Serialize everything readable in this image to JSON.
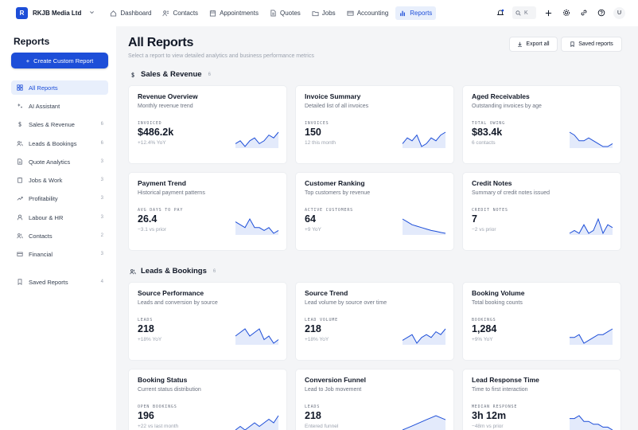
{
  "colors": {
    "accent": "#1d4ed8",
    "accent_bg": "#e8effc",
    "page_bg": "#f4f5f7"
  },
  "workspace": {
    "initial": "R",
    "name": "RKJB Media Ltd"
  },
  "nav": [
    {
      "label": "Dashboard",
      "icon": "home-icon"
    },
    {
      "label": "Contacts",
      "icon": "contacts-icon"
    },
    {
      "label": "Appointments",
      "icon": "calendar-icon"
    },
    {
      "label": "Quotes",
      "icon": "document-icon"
    },
    {
      "label": "Jobs",
      "icon": "folder-icon"
    },
    {
      "label": "Accounting",
      "icon": "credit-card-icon"
    },
    {
      "label": "Reports",
      "icon": "bar-chart-icon",
      "active": true
    }
  ],
  "search": {
    "shortcut": "K"
  },
  "user": {
    "initial": "U"
  },
  "sidebar": {
    "title": "Reports",
    "create_label": "Create Custom Report",
    "items": [
      {
        "label": "All Reports",
        "icon": "grid-icon",
        "active": true
      },
      {
        "label": "AI Assistant",
        "icon": "sparkle-icon"
      },
      {
        "label": "Sales & Revenue",
        "icon": "dollar-icon",
        "count": "6"
      },
      {
        "label": "Leads & Bookings",
        "icon": "users-icon",
        "count": "6"
      },
      {
        "label": "Quote Analytics",
        "icon": "document-icon",
        "count": "3"
      },
      {
        "label": "Jobs & Work",
        "icon": "clipboard-icon",
        "count": "3"
      },
      {
        "label": "Profitability",
        "icon": "trend-up-icon",
        "count": "3"
      },
      {
        "label": "Labour & HR",
        "icon": "user-icon",
        "count": "3"
      },
      {
        "label": "Contacts",
        "icon": "users-icon",
        "count": "2"
      },
      {
        "label": "Financial",
        "icon": "credit-card-icon",
        "count": "3"
      },
      {
        "label": "Saved Reports",
        "icon": "bookmark-icon",
        "count": "4"
      }
    ]
  },
  "main": {
    "title": "All Reports",
    "subtitle": "Select a report to view detailed analytics and business performance metrics",
    "export_label": "Export all",
    "saved_label": "Saved reports"
  },
  "sections": [
    {
      "name": "Sales & Revenue",
      "icon": "dollar-icon",
      "count": "6",
      "cards": [
        {
          "title": "Revenue Overview",
          "desc": "Monthly revenue trend",
          "metric_label": "INVOICED",
          "metric_value": "$486.2k",
          "change": "+12.4% YoY",
          "spark": [
            3,
            4,
            2,
            4,
            5,
            3,
            4,
            6,
            5,
            7
          ]
        },
        {
          "title": "Invoice Summary",
          "desc": "Detailed list of all invoices",
          "metric_label": "INVOICES",
          "metric_value": "150",
          "change": "12 this month",
          "spark": [
            3,
            5,
            4,
            6,
            2,
            3,
            5,
            4,
            6,
            7
          ]
        },
        {
          "title": "Aged Receivables",
          "desc": "Outstanding invoices by age",
          "metric_label": "TOTAL OWING",
          "metric_value": "$83.4k",
          "change": "6 contacts",
          "spark": [
            7,
            6,
            4,
            4,
            5,
            4,
            3,
            2,
            2,
            3
          ]
        },
        {
          "title": "Payment Trend",
          "desc": "Historical payment patterns",
          "metric_label": "AVG DAYS TO PAY",
          "metric_value": "26.4",
          "change": "−3.1 vs prior",
          "spark": [
            6,
            5,
            4,
            7,
            4,
            4,
            3,
            4,
            2,
            3
          ]
        },
        {
          "title": "Customer Ranking",
          "desc": "Top customers by revenue",
          "metric_label": "ACTIVE CUSTOMERS",
          "metric_value": "64",
          "change": "+9 YoY",
          "spark": [
            7,
            6,
            5,
            4.5,
            4,
            3.5,
            3,
            2.7,
            2.3,
            2
          ]
        },
        {
          "title": "Credit Notes",
          "desc": "Summary of credit notes issued",
          "metric_label": "CREDIT NOTES",
          "metric_value": "7",
          "change": "−2 vs prior",
          "spark": [
            2,
            3,
            2,
            5,
            2,
            3,
            7,
            2,
            5,
            4
          ]
        }
      ]
    },
    {
      "name": "Leads & Bookings",
      "icon": "users-icon",
      "count": "6",
      "cards": [
        {
          "title": "Source Performance",
          "desc": "Leads and conversion by source",
          "metric_label": "LEADS",
          "metric_value": "218",
          "change": "+18% YoY",
          "spark": [
            5,
            6,
            7,
            5,
            6,
            7,
            4,
            5,
            3,
            4
          ]
        },
        {
          "title": "Source Trend",
          "desc": "Lead volume by source over time",
          "metric_label": "LEAD VOLUME",
          "metric_value": "218",
          "change": "+18% YoY",
          "spark": [
            3,
            4,
            5,
            2,
            4,
            5,
            4,
            6,
            5,
            7
          ]
        },
        {
          "title": "Booking Volume",
          "desc": "Total booking counts",
          "metric_label": "BOOKINGS",
          "metric_value": "1,284",
          "change": "+9% YoY",
          "spark": [
            4,
            4,
            5,
            2,
            3,
            4,
            5,
            5,
            6,
            7
          ]
        },
        {
          "title": "Booking Status",
          "desc": "Current status distribution",
          "metric_label": "OPEN BOOKINGS",
          "metric_value": "196",
          "change": "+22 vs last month",
          "spark": [
            2,
            3,
            2,
            3,
            4,
            3,
            4,
            5,
            4,
            6
          ]
        },
        {
          "title": "Conversion Funnel",
          "desc": "Lead to Job movement",
          "metric_label": "LEADS",
          "metric_value": "218",
          "change": "Entered funnel",
          "spark": [
            1,
            1.5,
            2,
            2.5,
            3,
            3.5,
            4,
            4.5,
            4,
            3.5
          ]
        },
        {
          "title": "Lead Response Time",
          "desc": "Time to first interaction",
          "metric_label": "MEDIAN RESPONSE",
          "metric_value": "3h 12m",
          "change": "−48m vs prior",
          "spark": [
            5,
            5,
            6,
            4,
            4,
            3,
            3,
            2,
            2,
            1
          ]
        }
      ]
    }
  ]
}
